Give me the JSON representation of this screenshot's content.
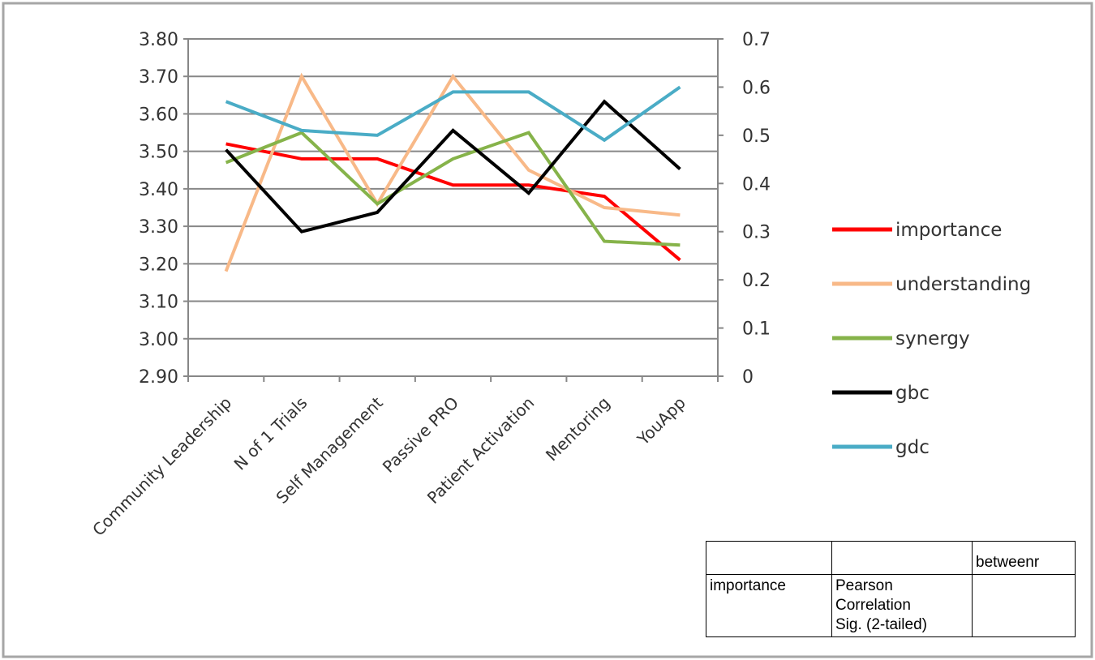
{
  "chart_data": {
    "type": "line",
    "categories": [
      "Community Leadership",
      "N of 1 Trials",
      "Self Management",
      "Passive PRO",
      "Patient Activation",
      "Mentoring",
      "YouApp"
    ],
    "left_axis": {
      "ylim": [
        2.9,
        3.8
      ],
      "ticks": [
        "3.80",
        "3.70",
        "3.60",
        "3.50",
        "3.40",
        "3.30",
        "3.20",
        "3.10",
        "3.00",
        "2.90"
      ]
    },
    "right_axis": {
      "ylim": [
        0,
        0.7
      ],
      "ticks": [
        "0.7",
        "0.6",
        "0.5",
        "0.4",
        "0.3",
        "0.2",
        "0.1",
        "0"
      ]
    },
    "series": [
      {
        "name": "importance",
        "axis": "left",
        "color": "#ff0000",
        "values": [
          3.52,
          3.48,
          3.48,
          3.41,
          3.41,
          3.38,
          3.21
        ]
      },
      {
        "name": "understanding",
        "axis": "left",
        "color": "#f8b988",
        "values": [
          3.18,
          3.7,
          3.36,
          3.7,
          3.45,
          3.35,
          3.33
        ]
      },
      {
        "name": "synergy",
        "axis": "left",
        "color": "#86b34a",
        "values": [
          3.47,
          3.55,
          3.36,
          3.48,
          3.55,
          3.26,
          3.25
        ]
      },
      {
        "name": "gbc",
        "axis": "right",
        "color": "#000000",
        "values": [
          0.47,
          0.3,
          0.34,
          0.51,
          0.38,
          0.57,
          0.43
        ]
      },
      {
        "name": "gdc",
        "axis": "right",
        "color": "#4aacc6",
        "values": [
          0.57,
          0.51,
          0.5,
          0.59,
          0.59,
          0.49,
          0.6
        ]
      }
    ],
    "grid": true,
    "legend": "right"
  },
  "table": {
    "header": "betweenr",
    "row_label": "importance",
    "stat_lines": [
      "Pearson",
      "Correlation",
      "Sig. (2-tailed)"
    ]
  }
}
